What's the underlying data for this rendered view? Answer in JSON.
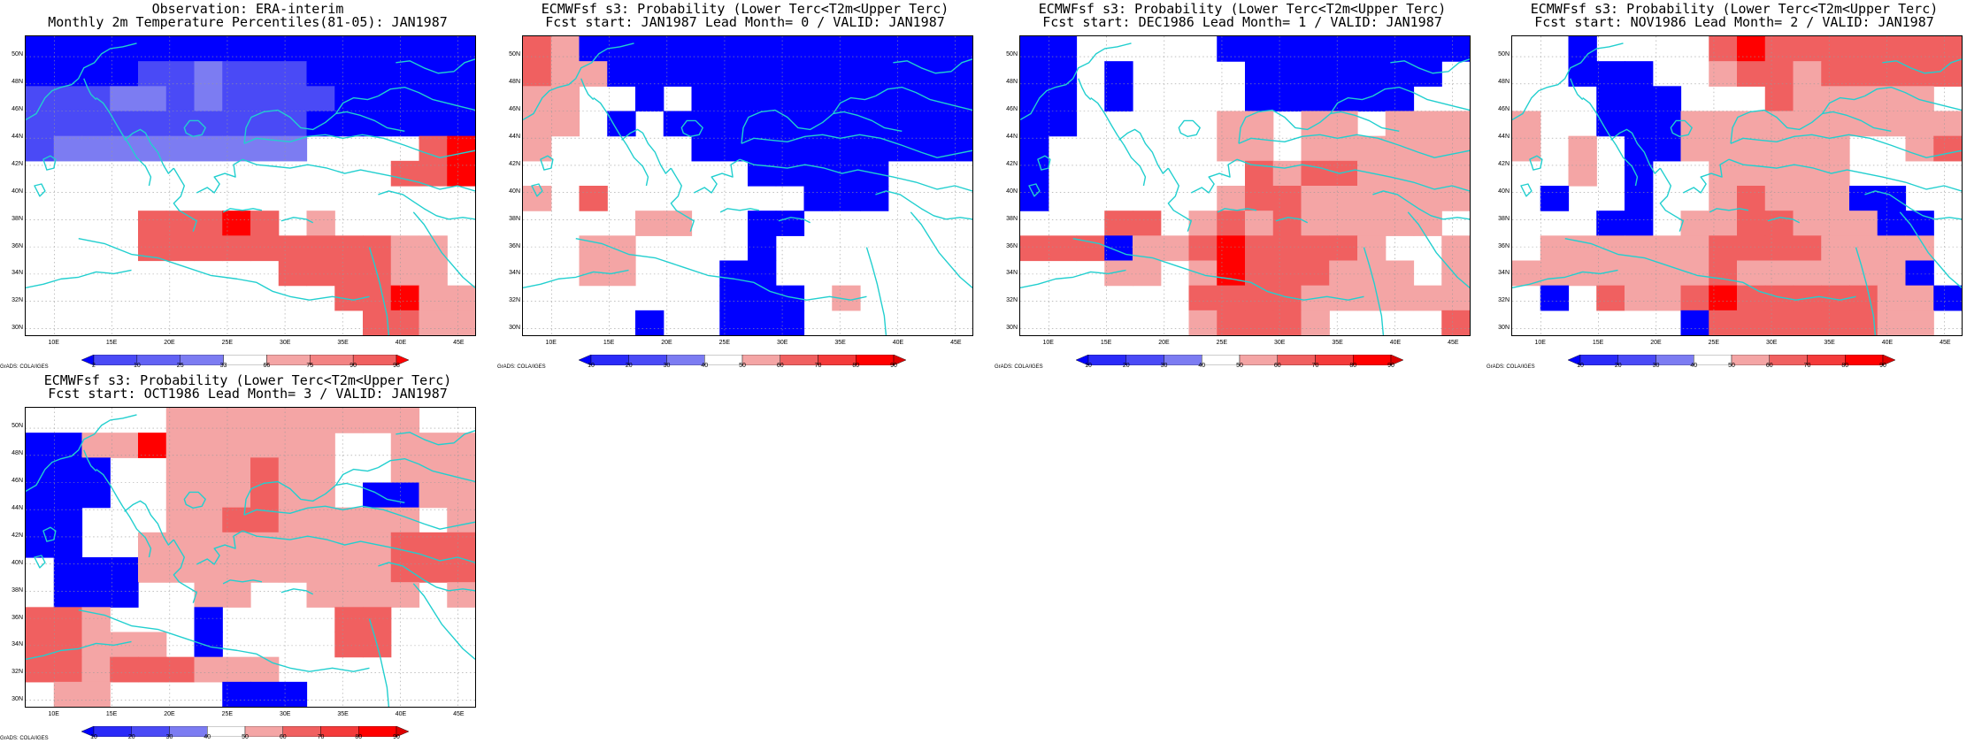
{
  "colors": {
    "blue_strong": "#0000ff",
    "blue_mid": "#4a4af6",
    "blue_light": "#7c7cf2",
    "red_strong": "#ff0000",
    "red_mid": "#f06060",
    "red_light": "#f4a5a5",
    "coast": "#22cfcf"
  },
  "map": {
    "lat_labels": [
      "50N",
      "48N",
      "46N",
      "44N",
      "42N",
      "40N",
      "38N",
      "36N",
      "34N",
      "32N",
      "30N"
    ],
    "lon_labels": [
      "10E",
      "15E",
      "20E",
      "25E",
      "30E",
      "35E",
      "40E",
      "45E"
    ],
    "lat_range": [
      29.5,
      51.5
    ],
    "lon_range": [
      7.5,
      46.5
    ],
    "credit": "GrADS: COLA/IGES"
  },
  "panels": [
    {
      "name": "observation",
      "title_line1": "Observation: ERA-interim",
      "title_line2": "Monthly 2m Temperature Percentiles(81-05): JAN1987",
      "colorbar_labels": [
        "2",
        "10",
        "25",
        "33",
        "66",
        "75",
        "90",
        "98"
      ],
      "grid": [
        [
          "b3",
          "b3",
          "b3",
          "b3",
          "b3",
          "b3",
          "b3",
          "b3",
          "b3",
          "b3",
          "b3",
          "b3",
          "b3",
          "b3",
          "b3",
          "b3"
        ],
        [
          "b3",
          "b3",
          "b3",
          "b3",
          "b2",
          "b2",
          "b1",
          "b2",
          "b2",
          "b2",
          "b3",
          "b3",
          "b3",
          "b3",
          "b3",
          "b3"
        ],
        [
          "b2",
          "b2",
          "b2",
          "b1",
          "b1",
          "b2",
          "b1",
          "b2",
          "b2",
          "b2",
          "b2",
          "b3",
          "b3",
          "b3",
          "b3",
          "b3"
        ],
        [
          "b2",
          "b2",
          "b2",
          "b2",
          "b2",
          "b2",
          "b2",
          "b2",
          "b2",
          "b2",
          "b3",
          "b3",
          "b3",
          "b3",
          "b3",
          "b3"
        ],
        [
          "b2",
          "b1",
          "b1",
          "b1",
          "b1",
          "b1",
          "b1",
          "b1",
          "b1",
          "b1",
          "w",
          "w",
          "w",
          "w",
          "r2",
          "r3"
        ],
        [
          "w",
          "w",
          "w",
          "w",
          "w",
          "w",
          "w",
          "w",
          "w",
          "w",
          "w",
          "w",
          "w",
          "r2",
          "r2",
          "r3"
        ],
        [
          "w",
          "w",
          "w",
          "w",
          "w",
          "w",
          "w",
          "w",
          "w",
          "w",
          "w",
          "w",
          "w",
          "w",
          "w",
          "w"
        ],
        [
          "w",
          "w",
          "w",
          "w",
          "r2",
          "r2",
          "r2",
          "r3",
          "r2",
          "w",
          "r1",
          "w",
          "w",
          "w",
          "w",
          "w"
        ],
        [
          "w",
          "w",
          "w",
          "w",
          "r2",
          "r2",
          "r2",
          "r2",
          "r2",
          "r2",
          "r2",
          "r2",
          "r2",
          "r1",
          "r1",
          "w"
        ],
        [
          "w",
          "w",
          "w",
          "w",
          "w",
          "w",
          "w",
          "w",
          "w",
          "r2",
          "r2",
          "r2",
          "r2",
          "r1",
          "r1",
          "w"
        ],
        [
          "w",
          "w",
          "w",
          "w",
          "w",
          "w",
          "w",
          "w",
          "w",
          "w",
          "w",
          "r2",
          "r2",
          "r3",
          "r1",
          "r1"
        ],
        [
          "w",
          "w",
          "w",
          "w",
          "w",
          "w",
          "w",
          "w",
          "w",
          "w",
          "w",
          "w",
          "r2",
          "r2",
          "r1",
          "r1"
        ]
      ]
    },
    {
      "name": "lead-0",
      "title_line1": "ECMWFsf s3: Probability (Lower Terc<T2m<Upper Terc)",
      "title_line2": "Fcst start: JAN1987  Lead Month= 0 / VALID: JAN1987",
      "colorbar_labels": [
        "10",
        "20",
        "30",
        "40",
        "50",
        "60",
        "70",
        "80",
        "90"
      ],
      "grid": [
        [
          "r2",
          "r1",
          "b3",
          "b3",
          "b3",
          "b3",
          "b3",
          "b3",
          "b3",
          "b3",
          "b3",
          "b3",
          "b3",
          "b3",
          "b3",
          "b3"
        ],
        [
          "r2",
          "r1",
          "r1",
          "b3",
          "b3",
          "b3",
          "b3",
          "b3",
          "b3",
          "b3",
          "b3",
          "b3",
          "b3",
          "b3",
          "b3",
          "b3"
        ],
        [
          "r1",
          "r1",
          "w",
          "w",
          "b3",
          "w",
          "b3",
          "b3",
          "b3",
          "b3",
          "b3",
          "b3",
          "b3",
          "b3",
          "b3",
          "b3"
        ],
        [
          "r1",
          "r1",
          "w",
          "b3",
          "w",
          "b3",
          "b3",
          "b3",
          "b3",
          "b3",
          "b3",
          "b3",
          "b3",
          "b3",
          "b3",
          "b3"
        ],
        [
          "r1",
          "w",
          "w",
          "w",
          "w",
          "w",
          "b3",
          "b3",
          "b3",
          "b3",
          "b3",
          "b3",
          "b3",
          "b3",
          "b3",
          "b3"
        ],
        [
          "w",
          "w",
          "w",
          "w",
          "w",
          "w",
          "w",
          "w",
          "b3",
          "b3",
          "b3",
          "b3",
          "b3",
          "w",
          "w",
          "w"
        ],
        [
          "r1",
          "w",
          "r2",
          "w",
          "w",
          "w",
          "w",
          "w",
          "w",
          "w",
          "b3",
          "b3",
          "b3",
          "w",
          "w",
          "w"
        ],
        [
          "w",
          "w",
          "w",
          "w",
          "r1",
          "r1",
          "w",
          "w",
          "b3",
          "b3",
          "w",
          "w",
          "w",
          "w",
          "w",
          "w"
        ],
        [
          "w",
          "w",
          "r1",
          "r1",
          "w",
          "w",
          "w",
          "w",
          "b3",
          "w",
          "w",
          "w",
          "w",
          "w",
          "w",
          "w"
        ],
        [
          "w",
          "w",
          "r1",
          "r1",
          "w",
          "w",
          "w",
          "b3",
          "b3",
          "w",
          "w",
          "w",
          "w",
          "w",
          "w",
          "w"
        ],
        [
          "w",
          "w",
          "w",
          "w",
          "w",
          "w",
          "w",
          "b3",
          "b3",
          "b3",
          "w",
          "r1",
          "w",
          "w",
          "w",
          "w"
        ],
        [
          "w",
          "w",
          "w",
          "w",
          "b3",
          "w",
          "w",
          "b3",
          "b3",
          "b3",
          "w",
          "w",
          "w",
          "w",
          "w",
          "w"
        ]
      ]
    },
    {
      "name": "lead-1",
      "title_line1": "ECMWFsf s3: Probability (Lower Terc<T2m<Upper Terc)",
      "title_line2": "Fcst start: DEC1986  Lead Month= 1 / VALID: JAN1987",
      "colorbar_labels": [
        "10",
        "20",
        "30",
        "40",
        "50",
        "60",
        "70",
        "80",
        "90"
      ],
      "grid": [
        [
          "b3",
          "b3",
          "w",
          "w",
          "w",
          "w",
          "w",
          "b3",
          "b3",
          "b3",
          "b3",
          "b3",
          "b3",
          "b3",
          "b3",
          "b3"
        ],
        [
          "b3",
          "b3",
          "w",
          "b3",
          "w",
          "w",
          "w",
          "w",
          "b3",
          "b3",
          "b3",
          "b3",
          "b3",
          "b3",
          "b3",
          "w"
        ],
        [
          "b3",
          "b3",
          "w",
          "b3",
          "w",
          "w",
          "w",
          "w",
          "b3",
          "b3",
          "b3",
          "b3",
          "b3",
          "b3",
          "w",
          "w"
        ],
        [
          "b3",
          "b3",
          "w",
          "w",
          "w",
          "w",
          "w",
          "r1",
          "r1",
          "w",
          "r1",
          "r1",
          "w",
          "r1",
          "r1",
          "r1"
        ],
        [
          "b3",
          "w",
          "w",
          "w",
          "w",
          "w",
          "w",
          "r1",
          "r1",
          "w",
          "r1",
          "r1",
          "r1",
          "r1",
          "r1",
          "r1"
        ],
        [
          "b3",
          "w",
          "w",
          "w",
          "w",
          "w",
          "w",
          "w",
          "r2",
          "r1",
          "r2",
          "r2",
          "r1",
          "r1",
          "r1",
          "r1"
        ],
        [
          "b3",
          "w",
          "w",
          "w",
          "w",
          "w",
          "w",
          "r1",
          "r2",
          "r2",
          "r1",
          "r1",
          "r1",
          "r1",
          "r1",
          "r1"
        ],
        [
          "w",
          "w",
          "w",
          "r2",
          "r2",
          "w",
          "r1",
          "r2",
          "r1",
          "r2",
          "r1",
          "r1",
          "r1",
          "r1",
          "r1",
          "w"
        ],
        [
          "r2",
          "r2",
          "r2",
          "b3",
          "r1",
          "r1",
          "r2",
          "r3",
          "r2",
          "r2",
          "r2",
          "r2",
          "r1",
          "w",
          "w",
          "r1"
        ],
        [
          "w",
          "w",
          "w",
          "r1",
          "r1",
          "w",
          "r1",
          "r3",
          "r2",
          "r2",
          "r2",
          "r1",
          "r1",
          "r1",
          "w",
          "r1"
        ],
        [
          "w",
          "w",
          "w",
          "w",
          "w",
          "w",
          "r2",
          "r2",
          "r2",
          "r2",
          "r1",
          "r1",
          "r1",
          "r1",
          "r1",
          "r1"
        ],
        [
          "w",
          "w",
          "w",
          "w",
          "w",
          "w",
          "r1",
          "r2",
          "r2",
          "r2",
          "r1",
          "w",
          "w",
          "w",
          "w",
          "r2"
        ]
      ]
    },
    {
      "name": "lead-2",
      "title_line1": "ECMWFsf s3: Probability (Lower Terc<T2m<Upper Terc)",
      "title_line2": "Fcst start: NOV1986  Lead Month= 2 / VALID: JAN1987",
      "colorbar_labels": [
        "10",
        "20",
        "30",
        "40",
        "50",
        "60",
        "70",
        "80",
        "90"
      ],
      "grid": [
        [
          "w",
          "w",
          "b3",
          "w",
          "w",
          "w",
          "w",
          "r2",
          "r3",
          "r2",
          "r2",
          "r2",
          "r2",
          "r2",
          "r2",
          "r2"
        ],
        [
          "w",
          "w",
          "b3",
          "b3",
          "b3",
          "w",
          "w",
          "r1",
          "r2",
          "r2",
          "r1",
          "r2",
          "r2",
          "r2",
          "r2",
          "r2"
        ],
        [
          "w",
          "w",
          "w",
          "b3",
          "b3",
          "b3",
          "w",
          "w",
          "w",
          "r2",
          "r1",
          "r1",
          "r1",
          "r1",
          "r1",
          "w"
        ],
        [
          "r1",
          "w",
          "w",
          "b3",
          "b3",
          "b3",
          "r1",
          "r1",
          "r1",
          "r1",
          "r1",
          "r1",
          "r1",
          "r1",
          "r1",
          "r1"
        ],
        [
          "r1",
          "w",
          "r1",
          "w",
          "b3",
          "b3",
          "r1",
          "r1",
          "r1",
          "r1",
          "r1",
          "r1",
          "w",
          "w",
          "r1",
          "r2"
        ],
        [
          "w",
          "w",
          "r1",
          "w",
          "b3",
          "w",
          "w",
          "r1",
          "r1",
          "r1",
          "r1",
          "r1",
          "w",
          "w",
          "w",
          "w"
        ],
        [
          "w",
          "b3",
          "w",
          "w",
          "b3",
          "w",
          "w",
          "r1",
          "r2",
          "r1",
          "r1",
          "r1",
          "b3",
          "b3",
          "w",
          "w"
        ],
        [
          "w",
          "w",
          "w",
          "b3",
          "b3",
          "w",
          "r1",
          "r1",
          "r2",
          "r2",
          "r1",
          "r1",
          "r1",
          "b3",
          "b3",
          "w"
        ],
        [
          "w",
          "r1",
          "r1",
          "r1",
          "r1",
          "r1",
          "r1",
          "r2",
          "r2",
          "r2",
          "r2",
          "r1",
          "r1",
          "r1",
          "r1",
          "w"
        ],
        [
          "r1",
          "r1",
          "r1",
          "r1",
          "r1",
          "r1",
          "r1",
          "r2",
          "r1",
          "r1",
          "r1",
          "r1",
          "r1",
          "r1",
          "b3",
          "w"
        ],
        [
          "w",
          "b3",
          "w",
          "r2",
          "r1",
          "r1",
          "r2",
          "r3",
          "r2",
          "r2",
          "r2",
          "r2",
          "r2",
          "r1",
          "r1",
          "b3"
        ],
        [
          "w",
          "w",
          "w",
          "w",
          "w",
          "w",
          "b3",
          "r2",
          "r2",
          "r2",
          "r2",
          "r2",
          "r2",
          "r1",
          "r1",
          "w"
        ]
      ]
    },
    {
      "name": "lead-3",
      "title_line1": "ECMWFsf s3: Probability (Lower Terc<T2m<Upper Terc)",
      "title_line2": "Fcst start: OCT1986  Lead Month= 3 / VALID: JAN1987",
      "colorbar_labels": [
        "10",
        "20",
        "30",
        "40",
        "50",
        "60",
        "70",
        "80",
        "90"
      ],
      "grid": [
        [
          "w",
          "w",
          "w",
          "w",
          "w",
          "r1",
          "r1",
          "r1",
          "r1",
          "r1",
          "r1",
          "r1",
          "r1",
          "r1",
          "w",
          "w"
        ],
        [
          "b3",
          "b3",
          "r1",
          "r1",
          "r3",
          "r1",
          "r1",
          "r1",
          "r1",
          "r1",
          "r1",
          "w",
          "w",
          "r1",
          "r1",
          "r1"
        ],
        [
          "b3",
          "b3",
          "b3",
          "w",
          "w",
          "r1",
          "r1",
          "r1",
          "r2",
          "r1",
          "r1",
          "w",
          "w",
          "r1",
          "r1",
          "r1"
        ],
        [
          "b3",
          "b3",
          "b3",
          "w",
          "w",
          "r1",
          "r1",
          "r1",
          "r2",
          "r1",
          "r1",
          "w",
          "b3",
          "b3",
          "r1",
          "r1"
        ],
        [
          "b3",
          "b3",
          "w",
          "w",
          "w",
          "r1",
          "r1",
          "r2",
          "r2",
          "r1",
          "r1",
          "r1",
          "r1",
          "r1",
          "w",
          "r1"
        ],
        [
          "b3",
          "b3",
          "w",
          "w",
          "r1",
          "r1",
          "r1",
          "r1",
          "r1",
          "r1",
          "r1",
          "r1",
          "r1",
          "r2",
          "r2",
          "r2"
        ],
        [
          "w",
          "b3",
          "b3",
          "b3",
          "r1",
          "r1",
          "r1",
          "r1",
          "r1",
          "r1",
          "r1",
          "r1",
          "r1",
          "r2",
          "r2",
          "r2"
        ],
        [
          "w",
          "b3",
          "b3",
          "b3",
          "w",
          "w",
          "r1",
          "r1",
          "w",
          "w",
          "r1",
          "r1",
          "r1",
          "r1",
          "w",
          "r1"
        ],
        [
          "r2",
          "r2",
          "r1",
          "w",
          "w",
          "w",
          "b3",
          "w",
          "w",
          "w",
          "w",
          "r2",
          "r2",
          "w",
          "w",
          "w"
        ],
        [
          "r2",
          "r2",
          "r1",
          "r1",
          "r1",
          "w",
          "b3",
          "w",
          "w",
          "w",
          "w",
          "r2",
          "r2",
          "w",
          "w",
          "w"
        ],
        [
          "r2",
          "r2",
          "r1",
          "r2",
          "r2",
          "r2",
          "r1",
          "r1",
          "r1",
          "w",
          "w",
          "w",
          "w",
          "w",
          "w",
          "w"
        ],
        [
          "w",
          "r1",
          "r1",
          "w",
          "w",
          "w",
          "w",
          "b3",
          "b3",
          "b3",
          "w",
          "w",
          "w",
          "w",
          "w",
          "w"
        ]
      ]
    }
  ]
}
